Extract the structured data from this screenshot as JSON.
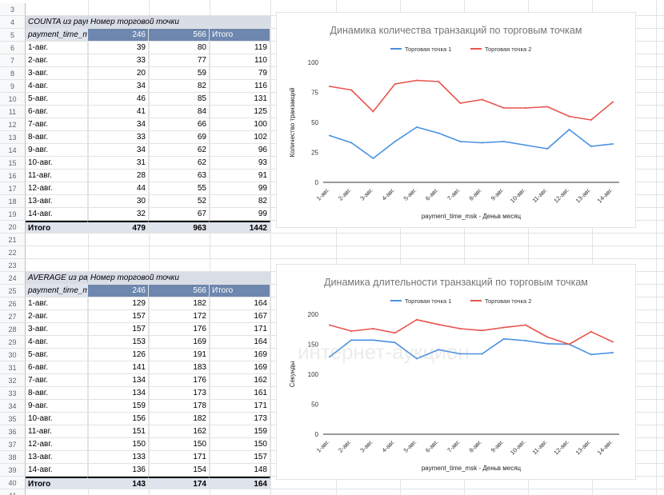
{
  "pivot1": {
    "title": "COUNTA из payment_time_msk",
    "column_group_label": "Номер торговой точки",
    "row_label": "payment_time_msk",
    "headers": [
      "246",
      "566",
      "Итого"
    ],
    "rows": [
      {
        "label": "1-авг.",
        "a": "39",
        "b": "80",
        "t": "119"
      },
      {
        "label": "2-авг.",
        "a": "33",
        "b": "77",
        "t": "110"
      },
      {
        "label": "3-авг.",
        "a": "20",
        "b": "59",
        "t": "79"
      },
      {
        "label": "4-авг.",
        "a": "34",
        "b": "82",
        "t": "116"
      },
      {
        "label": "5-авг.",
        "a": "46",
        "b": "85",
        "t": "131"
      },
      {
        "label": "6-авг.",
        "a": "41",
        "b": "84",
        "t": "125"
      },
      {
        "label": "7-авг.",
        "a": "34",
        "b": "66",
        "t": "100"
      },
      {
        "label": "8-авг.",
        "a": "33",
        "b": "69",
        "t": "102"
      },
      {
        "label": "9-авг.",
        "a": "34",
        "b": "62",
        "t": "96"
      },
      {
        "label": "10-авг.",
        "a": "31",
        "b": "62",
        "t": "93"
      },
      {
        "label": "11-авг.",
        "a": "28",
        "b": "63",
        "t": "91"
      },
      {
        "label": "12-авг.",
        "a": "44",
        "b": "55",
        "t": "99"
      },
      {
        "label": "13-авг.",
        "a": "30",
        "b": "52",
        "t": "82"
      },
      {
        "label": "14-авг.",
        "a": "32",
        "b": "67",
        "t": "99"
      }
    ],
    "total": {
      "label": "Итого",
      "a": "479",
      "b": "963",
      "t": "1442"
    }
  },
  "pivot2": {
    "title": "AVERAGE из payment_time_msk",
    "column_group_label": "Номер торговой точки",
    "row_label": "payment_time_msk",
    "headers": [
      "246",
      "566",
      "Итого"
    ],
    "rows": [
      {
        "label": "1-авг.",
        "a": "129",
        "b": "182",
        "t": "164"
      },
      {
        "label": "2-авг.",
        "a": "157",
        "b": "172",
        "t": "167"
      },
      {
        "label": "3-авг.",
        "a": "157",
        "b": "176",
        "t": "171"
      },
      {
        "label": "4-авг.",
        "a": "153",
        "b": "169",
        "t": "164"
      },
      {
        "label": "5-авг.",
        "a": "126",
        "b": "191",
        "t": "169"
      },
      {
        "label": "6-авг.",
        "a": "141",
        "b": "183",
        "t": "169"
      },
      {
        "label": "7-авг.",
        "a": "134",
        "b": "176",
        "t": "162"
      },
      {
        "label": "8-авг.",
        "a": "134",
        "b": "173",
        "t": "161"
      },
      {
        "label": "9-авг.",
        "a": "159",
        "b": "178",
        "t": "171"
      },
      {
        "label": "10-авг.",
        "a": "156",
        "b": "182",
        "t": "173"
      },
      {
        "label": "11-авг.",
        "a": "151",
        "b": "162",
        "t": "159"
      },
      {
        "label": "12-авг.",
        "a": "150",
        "b": "150",
        "t": "150"
      },
      {
        "label": "13-авг.",
        "a": "133",
        "b": "171",
        "t": "157"
      },
      {
        "label": "14-авг.",
        "a": "136",
        "b": "154",
        "t": "148"
      }
    ],
    "total": {
      "label": "Итого",
      "a": "143",
      "b": "174",
      "t": "164"
    }
  },
  "watermark": "интернет-аукцион",
  "colors": {
    "series1": "#4a90e2",
    "series2": "#e8554e",
    "header_blue": "#6d87ae"
  },
  "chart_data": [
    {
      "type": "line",
      "title": "Динамика количества транзакций по торговым точкам",
      "xlabel": "payment_time_msk - Деньв месяц",
      "ylabel": "Количество транзакций",
      "categories": [
        "1-авг.",
        "2-авг.",
        "3-авг.",
        "4-авг.",
        "5-авг.",
        "6-авг.",
        "7-авг.",
        "8-авг.",
        "9-авг.",
        "10-авг.",
        "11-авг.",
        "12-авг.",
        "13-авг.",
        "14-авг."
      ],
      "ylim": [
        0,
        100
      ],
      "yticks": [
        "0",
        "25",
        "50",
        "75",
        "100"
      ],
      "legend_position": "top",
      "grid": false,
      "series": [
        {
          "name": "Торговая точка 1",
          "color": "#4a90e2",
          "values": [
            39,
            33,
            20,
            34,
            46,
            41,
            34,
            33,
            34,
            31,
            28,
            44,
            30,
            32
          ]
        },
        {
          "name": "Торговая точка 2",
          "color": "#e8554e",
          "values": [
            80,
            77,
            59,
            82,
            85,
            84,
            66,
            69,
            62,
            62,
            63,
            55,
            52,
            67
          ]
        }
      ]
    },
    {
      "type": "line",
      "title": "Динамика длительности транзакций по торговым точкам",
      "xlabel": "payment_time_msk - Деньв месяц",
      "ylabel": "Секунды",
      "categories": [
        "1-авг.",
        "2-авг.",
        "3-авг.",
        "4-авг.",
        "5-авг.",
        "6-авг.",
        "7-авг.",
        "8-авг.",
        "9-авг.",
        "10-авг.",
        "11-авг.",
        "12-авг.",
        "13-авг.",
        "14-авг."
      ],
      "ylim": [
        0,
        200
      ],
      "yticks": [
        "0",
        "50",
        "100",
        "150",
        "200"
      ],
      "legend_position": "top",
      "grid": false,
      "series": [
        {
          "name": "Торговая точка 1",
          "color": "#4a90e2",
          "values": [
            129,
            157,
            157,
            153,
            126,
            141,
            134,
            134,
            159,
            156,
            151,
            150,
            133,
            136
          ]
        },
        {
          "name": "Торговая точка 2",
          "color": "#e8554e",
          "values": [
            182,
            172,
            176,
            169,
            191,
            183,
            176,
            173,
            178,
            182,
            162,
            150,
            171,
            154
          ]
        }
      ]
    }
  ]
}
